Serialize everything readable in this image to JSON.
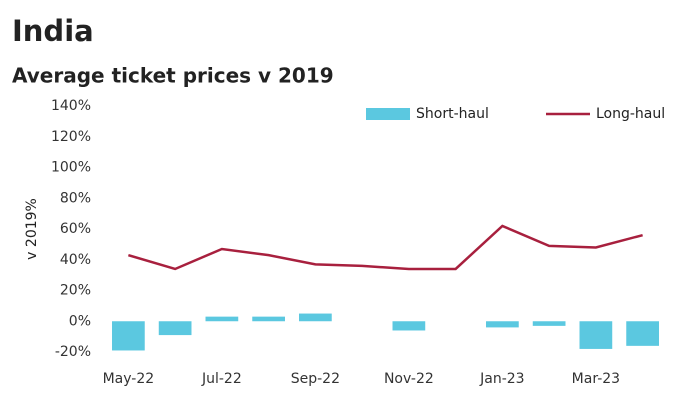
{
  "chart_data": {
    "type": "bar",
    "title": "India",
    "subtitle": "Average ticket prices v 2019",
    "y_label": "v 2019%",
    "categories": [
      "May-22",
      null,
      "Jul-22",
      null,
      "Sep-22",
      null,
      "Nov-22",
      null,
      "Jan-23",
      null,
      "Mar-23",
      null
    ],
    "series": [
      {
        "name": "Short-haul",
        "type": "bar",
        "color": "#5bc8e0",
        "values": [
          -19,
          -9,
          3,
          3,
          5,
          0,
          -6,
          0,
          -4,
          -3,
          -18,
          -16
        ]
      },
      {
        "name": "Long-haul",
        "type": "line",
        "color": "#a8203e",
        "values": [
          43,
          34,
          47,
          43,
          37,
          36,
          34,
          34,
          62,
          49,
          48,
          56
        ]
      }
    ],
    "ylim": [
      -20,
      140
    ],
    "yticks": [
      {
        "value": -20,
        "label": "-20%"
      },
      {
        "value": 0,
        "label": "0%"
      },
      {
        "value": 20,
        "label": "20%"
      },
      {
        "value": 40,
        "label": "40%"
      },
      {
        "value": 60,
        "label": "60%"
      },
      {
        "value": 80,
        "label": "80%"
      },
      {
        "value": 100,
        "label": "100%"
      },
      {
        "value": 120,
        "label": "120%"
      },
      {
        "value": 140,
        "label": "140%"
      }
    ],
    "legend": "top-right"
  }
}
